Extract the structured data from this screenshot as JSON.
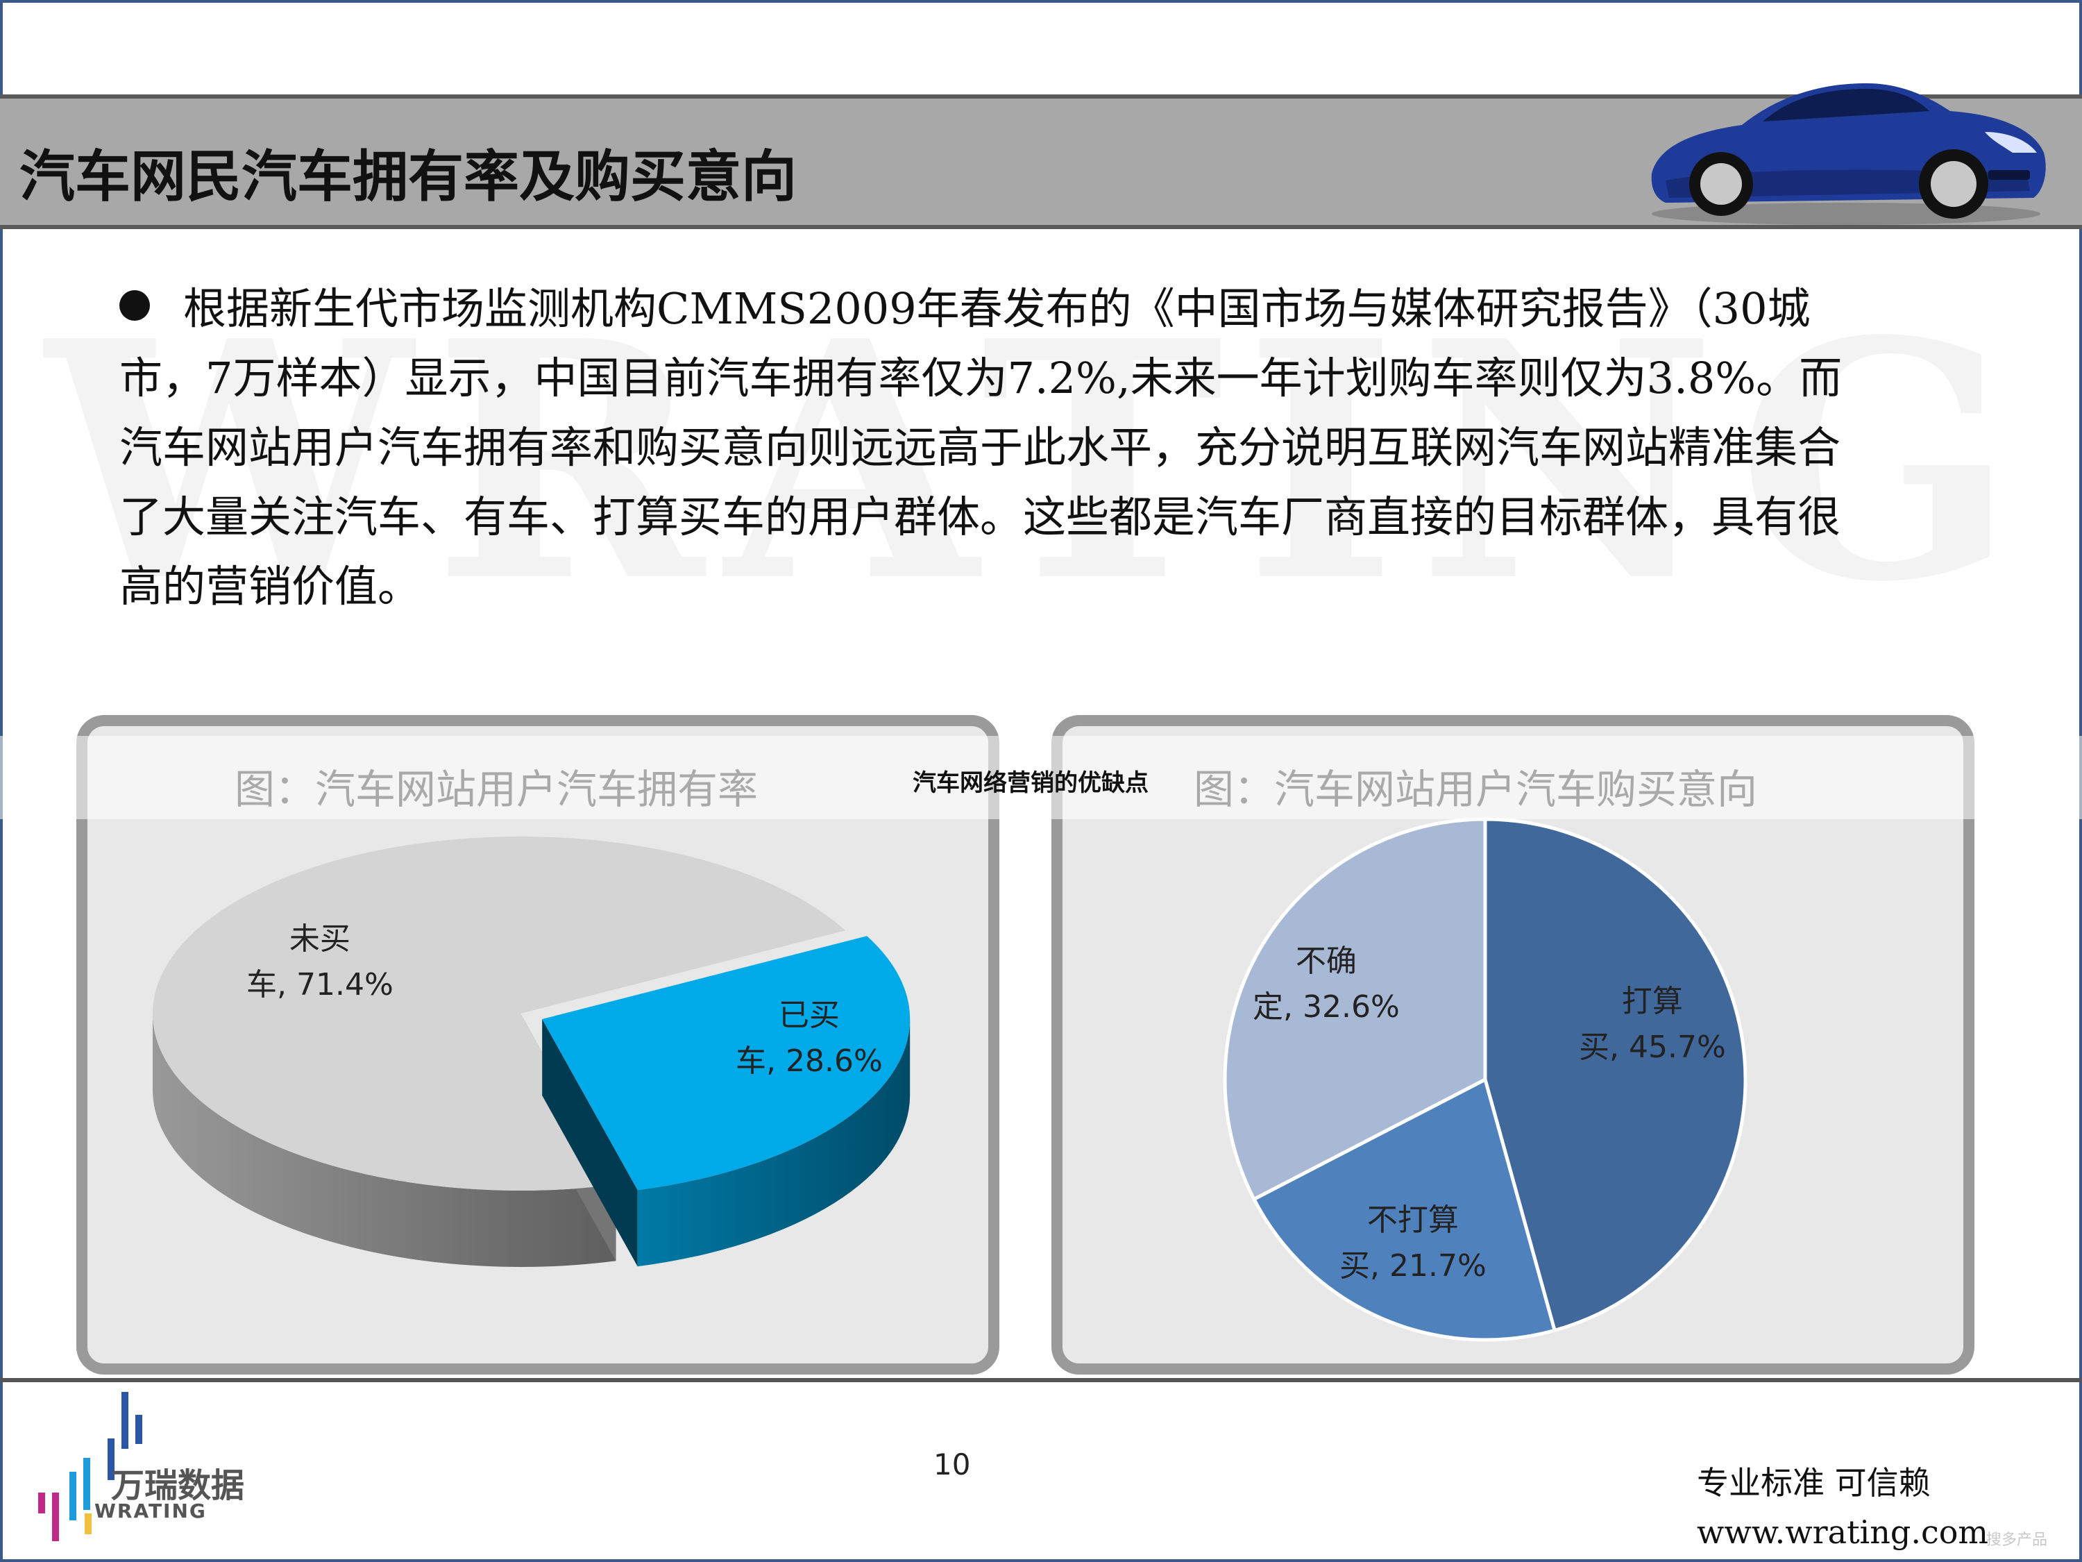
{
  "slide": {
    "title": "汽车网民汽车拥有率及购买意向",
    "watermark": "WRATING",
    "overlay_caption": "汽车网络营销的优缺点",
    "paragraph": [
      "根据新生代市场监测机构CMMS2009年春发布的《中国市场与媒体研究报告》（30城",
      "市，7万样本）显示，中国目前汽车拥有率仅为7.2%,未来一年计划购车率则仅为3.8%。而",
      "汽车网站用户汽车拥有率和购买意向则远远高于此水平，充分说明互联网汽车网站精准集合",
      "了大量关注汽车、有车、打算买车的用户群体。这些都是汽车厂商直接的目标群体，具有很",
      "高的营销价值。"
    ],
    "page_number": "10",
    "slogan": "专业标准  可信赖",
    "website": "www.wrating.com",
    "logo": {
      "name_cn": "万瑞数据",
      "name_en": "WRATING"
    },
    "corner_mark": "搜多产品"
  },
  "chart_data": [
    {
      "type": "pie",
      "title": "图：汽车网站用户汽车拥有率",
      "slices": [
        {
          "label_line1": "已买",
          "label_line2": "车, 28.6%",
          "value": 28.6,
          "color": "#00a9e8"
        },
        {
          "label_line1": "未买",
          "label_line2": "车, 71.4%",
          "value": 71.4,
          "color": "#d4d4d4"
        }
      ]
    },
    {
      "type": "pie",
      "title": "图：汽车网站用户汽车购买意向",
      "slices": [
        {
          "label_line1": "打算",
          "label_line2": "买, 45.7%",
          "value": 45.7,
          "color": "#41689a"
        },
        {
          "label_line1": "不打算",
          "label_line2": "买, 21.7%",
          "value": 21.7,
          "color": "#4f81bd"
        },
        {
          "label_line1": "不确",
          "label_line2": "定, 32.6%",
          "value": 32.6,
          "color": "#a8b9d6"
        }
      ]
    }
  ]
}
